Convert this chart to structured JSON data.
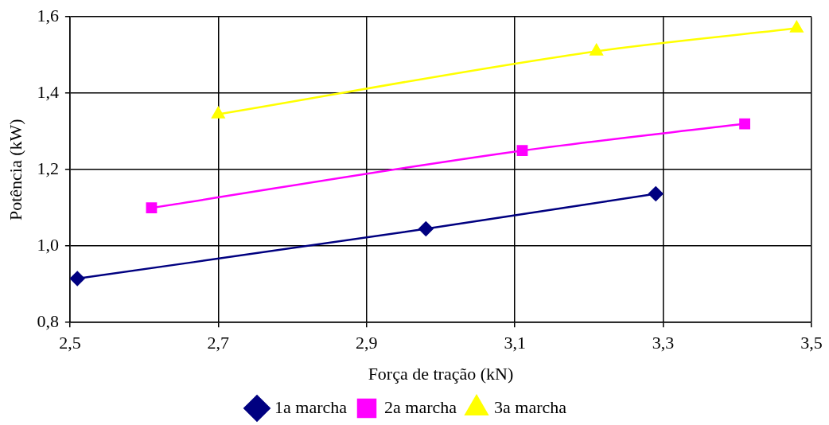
{
  "chart_data": {
    "type": "line",
    "xlabel": "Força de tração (kN)",
    "ylabel": "Potência (kW)",
    "xlim": [
      2.5,
      3.5
    ],
    "xticks": [
      {
        "value": 2.5,
        "label": "2,5"
      },
      {
        "value": 2.7,
        "label": "2,7"
      },
      {
        "value": 2.9,
        "label": "2,9"
      },
      {
        "value": 3.1,
        "label": "3,1"
      },
      {
        "value": 3.3,
        "label": "3,3"
      },
      {
        "value": 3.5,
        "label": "3,5"
      }
    ],
    "ylim": [
      0.8,
      1.6
    ],
    "yticks": [
      {
        "value": 0.8,
        "label": "0,8"
      },
      {
        "value": 1.0,
        "label": "1,0"
      },
      {
        "value": 1.2,
        "label": "1,2"
      },
      {
        "value": 1.4,
        "label": "1,4"
      },
      {
        "value": 1.6,
        "label": "1,6"
      }
    ],
    "grid": true,
    "legend": "bottom",
    "line_style": "solid",
    "series": [
      {
        "name": "1a marcha",
        "color": "#000080",
        "marker": "diamond",
        "x": [
          2.51,
          2.98,
          3.29
        ],
        "values": [
          0.915,
          1.045,
          1.137
        ]
      },
      {
        "name": "2a marcha",
        "color": "#ff00ff",
        "marker": "square",
        "x": [
          2.61,
          3.11,
          3.41
        ],
        "values": [
          1.1,
          1.25,
          1.32
        ]
      },
      {
        "name": "3a marcha",
        "color": "#ffff00",
        "marker": "triangle",
        "x": [
          2.7,
          3.21,
          3.48
        ],
        "values": [
          1.345,
          1.51,
          1.57
        ]
      }
    ]
  }
}
